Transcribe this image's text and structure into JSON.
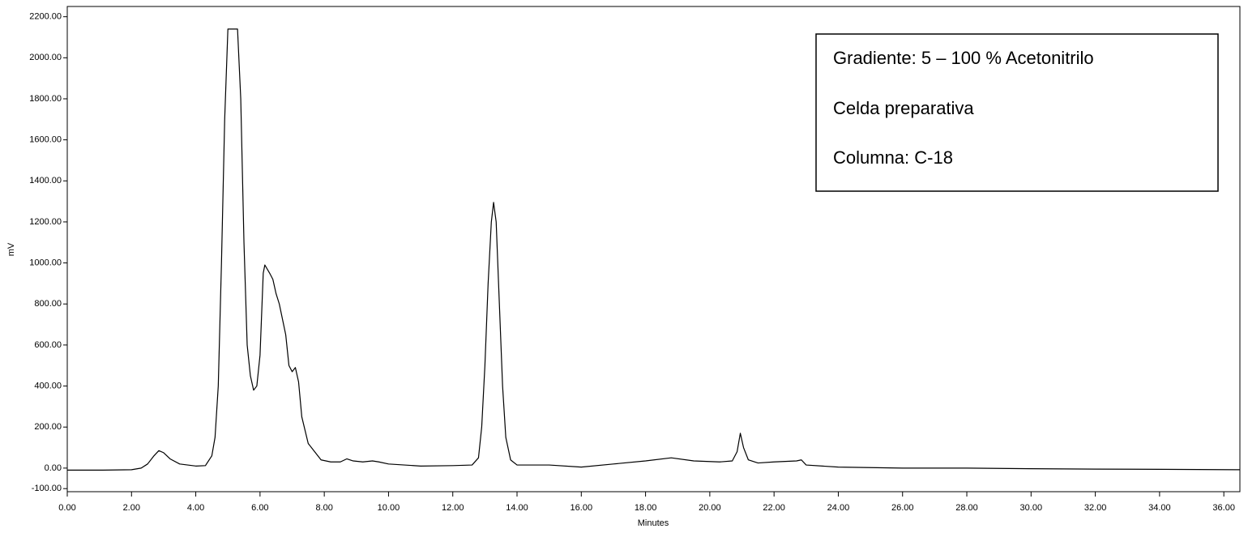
{
  "chart_data": {
    "type": "line",
    "xlabel": "Minutes",
    "ylabel": "mV",
    "annotations": [
      "Gradiente: 5 – 100 % Acetonitrilo",
      "Celda preparativa",
      "Columna: C-18"
    ],
    "xlim": [
      0,
      36.5
    ],
    "ylim": [
      -115,
      2250
    ],
    "xticks": [
      {
        "value": 0,
        "label": "0.00"
      },
      {
        "value": 2,
        "label": "2.00"
      },
      {
        "value": 4,
        "label": "4.00"
      },
      {
        "value": 6,
        "label": "6.00"
      },
      {
        "value": 8,
        "label": "8.00"
      },
      {
        "value": 10,
        "label": "10.00"
      },
      {
        "value": 12,
        "label": "12.00"
      },
      {
        "value": 14,
        "label": "14.00"
      },
      {
        "value": 16,
        "label": "16.00"
      },
      {
        "value": 18,
        "label": "18.00"
      },
      {
        "value": 20,
        "label": "20.00"
      },
      {
        "value": 22,
        "label": "22.00"
      },
      {
        "value": 24,
        "label": "24.00"
      },
      {
        "value": 26,
        "label": "26.00"
      },
      {
        "value": 28,
        "label": "28.00"
      },
      {
        "value": 30,
        "label": "30.00"
      },
      {
        "value": 32,
        "label": "32.00"
      },
      {
        "value": 34,
        "label": "34.00"
      },
      {
        "value": 36,
        "label": "36.00"
      }
    ],
    "yticks": [
      {
        "value": -100,
        "label": "-100.00"
      },
      {
        "value": 0,
        "label": "0.00"
      },
      {
        "value": 200,
        "label": "200.00"
      },
      {
        "value": 400,
        "label": "400.00"
      },
      {
        "value": 600,
        "label": "600.00"
      },
      {
        "value": 800,
        "label": "800.00"
      },
      {
        "value": 1000,
        "label": "1000.00"
      },
      {
        "value": 1200,
        "label": "1200.00"
      },
      {
        "value": 1400,
        "label": "1400.00"
      },
      {
        "value": 1600,
        "label": "1600.00"
      },
      {
        "value": 1800,
        "label": "1800.00"
      },
      {
        "value": 2000,
        "label": "2000.00"
      },
      {
        "value": 2200,
        "label": "2200.00"
      }
    ],
    "color": "#000000",
    "x": [
      0,
      1,
      2,
      2.3,
      2.5,
      2.7,
      2.85,
      3.0,
      3.2,
      3.5,
      4.0,
      4.3,
      4.5,
      4.6,
      4.7,
      4.8,
      4.9,
      5.0,
      5.3,
      5.4,
      5.5,
      5.6,
      5.7,
      5.8,
      5.9,
      6.0,
      6.1,
      6.15,
      6.3,
      6.4,
      6.5,
      6.6,
      6.8,
      6.9,
      7.0,
      7.1,
      7.2,
      7.3,
      7.5,
      7.7,
      7.9,
      8.2,
      8.5,
      8.7,
      8.9,
      9.2,
      9.5,
      9.7,
      10,
      11,
      12,
      12.6,
      12.8,
      12.9,
      13.0,
      13.1,
      13.2,
      13.27,
      13.35,
      13.45,
      13.55,
      13.65,
      13.8,
      14.0,
      15,
      16,
      17,
      18,
      18.8,
      19.5,
      20.3,
      20.7,
      20.85,
      20.95,
      21.05,
      21.2,
      21.5,
      22,
      22.7,
      22.85,
      23.0,
      24,
      26,
      28,
      30,
      32,
      34,
      36.5
    ],
    "values": [
      -10,
      -10,
      -8,
      0,
      20,
      60,
      85,
      75,
      45,
      20,
      10,
      12,
      60,
      150,
      400,
      1000,
      1700,
      2140,
      2140,
      1800,
      1100,
      600,
      450,
      380,
      400,
      550,
      950,
      990,
      950,
      920,
      850,
      800,
      650,
      500,
      470,
      490,
      420,
      250,
      120,
      80,
      40,
      30,
      30,
      45,
      35,
      30,
      35,
      30,
      20,
      10,
      12,
      15,
      50,
      200,
      500,
      900,
      1200,
      1295,
      1200,
      800,
      400,
      150,
      40,
      15,
      15,
      5,
      20,
      35,
      50,
      35,
      30,
      35,
      80,
      170,
      100,
      40,
      25,
      30,
      35,
      40,
      15,
      5,
      0,
      0,
      -3,
      -5,
      -6,
      -8
    ]
  }
}
